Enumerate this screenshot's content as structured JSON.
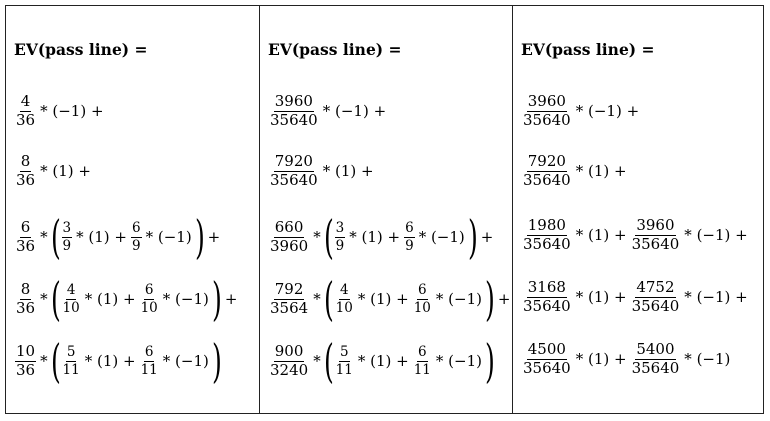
{
  "col1": {
    "title": "EV(pass line) =",
    "r1": {
      "n": "4",
      "d": "36",
      "t": "* (−1) +"
    },
    "r2": {
      "n": "8",
      "d": "36",
      "t": "* (1) +"
    },
    "r3": {
      "n": "6",
      "d": "36",
      "a_n": "3",
      "a_d": "9",
      "a_t": "* (1) +",
      "b_n": "6",
      "b_d": "9",
      "b_t": "* (−1)",
      "end": "+"
    },
    "r4": {
      "n": "8",
      "d": "36",
      "a_n": "4",
      "a_d": "10",
      "a_t": "* (1) +",
      "b_n": "6",
      "b_d": "10",
      "b_t": "* (−1)",
      "end": "+"
    },
    "r5": {
      "n": "10",
      "d": "36",
      "a_n": "5",
      "a_d": "11",
      "a_t": "* (1) +",
      "b_n": "6",
      "b_d": "11",
      "b_t": "* (−1)",
      "end": ""
    }
  },
  "col2": {
    "title": "EV(pass line) =",
    "r1": {
      "n": "3960",
      "d": "35640",
      "t": "* (−1) +"
    },
    "r2": {
      "n": "7920",
      "d": "35640",
      "t": "* (1) +"
    },
    "r3": {
      "n": "660",
      "d": "3960",
      "a_n": "3",
      "a_d": "9",
      "a_t": "* (1) +",
      "b_n": "6",
      "b_d": "9",
      "b_t": "* (−1)",
      "end": "+"
    },
    "r4": {
      "n": "792",
      "d": "3564",
      "a_n": "4",
      "a_d": "10",
      "a_t": "* (1) +",
      "b_n": "6",
      "b_d": "10",
      "b_t": "* (−1)",
      "end": "+"
    },
    "r5": {
      "n": "900",
      "d": "3240",
      "a_n": "5",
      "a_d": "11",
      "a_t": "* (1) +",
      "b_n": "6",
      "b_d": "11",
      "b_t": "* (−1)",
      "end": ""
    }
  },
  "col3": {
    "title": "EV(pass line) =",
    "r1": {
      "n": "3960",
      "d": "35640",
      "t": "* (−1) +"
    },
    "r2": {
      "n": "7920",
      "d": "35640",
      "t": "* (1) +"
    },
    "r3": {
      "a_n": "1980",
      "a_d": "35640",
      "a_t": "* (1) +",
      "b_n": "3960",
      "b_d": "35640",
      "b_t": "* (−1) +"
    },
    "r4": {
      "a_n": "3168",
      "a_d": "35640",
      "a_t": "* (1) +",
      "b_n": "4752",
      "b_d": "35640",
      "b_t": "* (−1) +"
    },
    "r5": {
      "a_n": "4500",
      "a_d": "35640",
      "a_t": "* (1) +",
      "b_n": "5400",
      "b_d": "35640",
      "b_t": "* (−1)"
    }
  }
}
